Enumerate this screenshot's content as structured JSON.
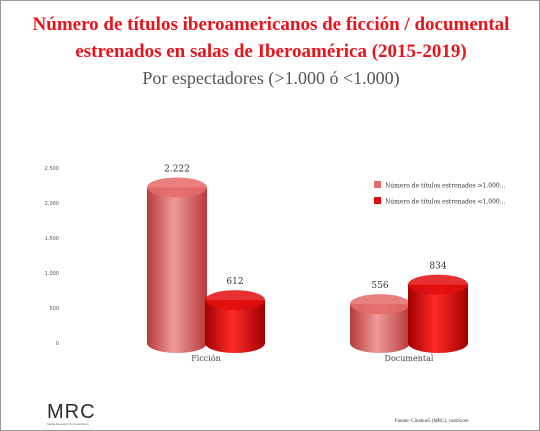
{
  "title": "Número de títulos iberoamericanos de ficción / documental estrenados en salas de Iberoamérica (2015-2019)",
  "subtitle": "Por espectadores (>1.000 ó <1.000)",
  "colors": {
    "series1": "#e56a6a",
    "series2": "#e00d0d",
    "title": "#e8141c"
  },
  "chart_data": {
    "type": "bar",
    "categories": [
      "Ficción",
      "Documental"
    ],
    "series": [
      {
        "name": "Número de títulos estrenados >1.000...",
        "values": [
          2222,
          556
        ],
        "labels": [
          "2.222",
          "556"
        ]
      },
      {
        "name": "Número de títulos estrenados <1.000...",
        "values": [
          612,
          834
        ],
        "labels": [
          "612",
          "834"
        ]
      }
    ],
    "ylim": [
      0,
      2500
    ],
    "yticks": [
      0,
      500,
      1000,
      1500,
      2000,
      2500
    ],
    "ytick_labels": [
      "0",
      "500",
      "1.000",
      "1.500",
      "2.000",
      "2.500"
    ],
    "legend_position": "right",
    "grid": false
  },
  "logo": {
    "text": "MRC",
    "tagline": "Media Research & Consultancy"
  },
  "source": "Fuente: Cinehue5 (MRC), comScore"
}
